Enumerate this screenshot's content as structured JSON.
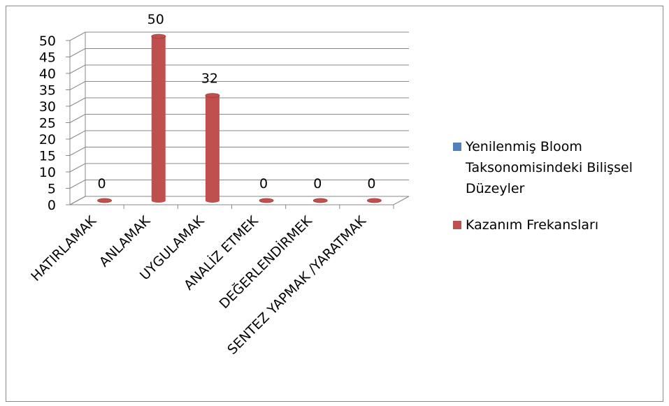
{
  "chart_data": {
    "type": "bar3d",
    "categories": [
      "HATIRLAMAK",
      "ANLAMAK",
      "UYGULAMAK",
      "ANALİZ ETMEK",
      "DEĞERLENDİRMEK",
      "SENTEZ YAPMAK /YARATMAK"
    ],
    "series": [
      {
        "name": "Yenilenmiş Bloom Taksonomisindeki Bilişsel Düzeyler",
        "color": "#4f81bd",
        "values": [
          null,
          null,
          null,
          null,
          null,
          null
        ]
      },
      {
        "name": "Kazanım Frekansları",
        "color": "#c0504d",
        "values": [
          0,
          50,
          32,
          0,
          0,
          0
        ]
      }
    ],
    "ylim": [
      0,
      50
    ],
    "yticks": [
      0,
      5,
      10,
      15,
      20,
      25,
      30,
      35,
      40,
      45,
      50
    ],
    "grid": true,
    "legend": "right"
  }
}
